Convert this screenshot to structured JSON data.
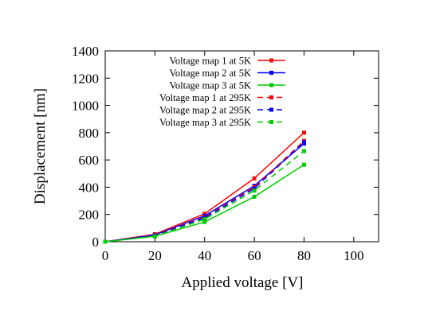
{
  "chart_data": {
    "type": "line",
    "xlabel": "Applied voltage [V]",
    "ylabel": "Displacement [nm]",
    "xlim": [
      0,
      110
    ],
    "ylim": [
      0,
      1400
    ],
    "xticks": [
      0,
      20,
      40,
      60,
      80,
      100
    ],
    "yticks": [
      0,
      200,
      400,
      600,
      800,
      1000,
      1200,
      1400
    ],
    "grid": false,
    "legend_position": "top-center",
    "x": [
      0,
      20,
      40,
      60,
      80
    ],
    "series": [
      {
        "name": "Voltage map 1 at 5K",
        "values": [
          0,
          55,
          205,
          465,
          800
        ],
        "color": "#ff0000",
        "dash": "solid"
      },
      {
        "name": "Voltage map 2 at 5K",
        "values": [
          0,
          50,
          190,
          410,
          720
        ],
        "color": "#0000ff",
        "dash": "solid"
      },
      {
        "name": "Voltage map 3 at 5K",
        "values": [
          0,
          40,
          145,
          330,
          565
        ],
        "color": "#00cc00",
        "dash": "solid"
      },
      {
        "name": "Voltage map 1 at 295K",
        "values": [
          0,
          48,
          180,
          400,
          740
        ],
        "color": "#ff0000",
        "dash": "dashed"
      },
      {
        "name": "Voltage map 2 at 295K",
        "values": [
          0,
          45,
          175,
          390,
          730
        ],
        "color": "#0000ff",
        "dash": "dashed"
      },
      {
        "name": "Voltage map 3 at 295K",
        "values": [
          0,
          40,
          165,
          375,
          665
        ],
        "color": "#00cc00",
        "dash": "dashed"
      }
    ]
  }
}
